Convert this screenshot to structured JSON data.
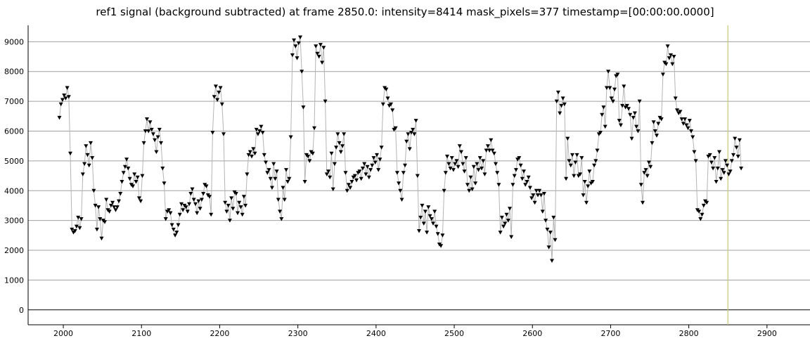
{
  "title": "ref1 signal (background subtracted) at frame 2850.0: intensity=8414 mask_pixels=377 timestamp=[00:00:00.0000]",
  "chart_data": {
    "type": "scatter",
    "title": "ref1 signal (background subtracted) at frame 2850.0: intensity=8414 mask_pixels=377 timestamp=[00:00:00.0000]",
    "xlabel": "",
    "ylabel": "",
    "xlim": [
      1955,
      2955
    ],
    "ylim": [
      -500,
      9550
    ],
    "x_ticks": [
      2000,
      2100,
      2200,
      2300,
      2400,
      2500,
      2600,
      2700,
      2800,
      2900
    ],
    "y_ticks": [
      0,
      1000,
      2000,
      3000,
      4000,
      5000,
      6000,
      7000,
      8000,
      9000
    ],
    "grid": "horizontal",
    "marker": "down-triangle",
    "line_color": "#b4b4b4",
    "marker_color": "#000000",
    "cursor": {
      "x": 2850,
      "color": "#c8c878"
    },
    "series": [
      {
        "x_start": 1995,
        "x_step": 2,
        "values": [
          6450,
          6900,
          7050,
          7200,
          7100,
          7450,
          7150,
          5250,
          2700,
          2600,
          2650,
          2800,
          3100,
          2750,
          3050,
          4550,
          4900,
          5500,
          5200,
          4850,
          5600,
          5100,
          4000,
          3500,
          2700,
          3450,
          3050,
          2400,
          3000,
          2950,
          3700,
          3350,
          3300,
          3500,
          3600,
          3450,
          3350,
          3450,
          3650,
          3900,
          4300,
          4600,
          4800,
          5050,
          4750,
          4400,
          4200,
          4150,
          4550,
          4300,
          4450,
          3750,
          3650,
          4500,
          5600,
          6000,
          6400,
          6000,
          6300,
          6050,
          5900,
          5700,
          5300,
          5800,
          6050,
          5600,
          4750,
          4250,
          3050,
          3300,
          3350,
          3250,
          2850,
          2700,
          2500,
          2600,
          2850,
          3200,
          3550,
          3350,
          3500,
          3450,
          3300,
          3550,
          3900,
          4050,
          3700,
          3550,
          3250,
          3650,
          3400,
          3700,
          3900,
          4200,
          4150,
          3850,
          3800,
          3200,
          5950,
          7150,
          7500,
          7050,
          7300,
          7450,
          6900,
          5900,
          3600,
          3300,
          3500,
          3000,
          3750,
          3400,
          3950,
          3900,
          3250,
          3600,
          3450,
          3200,
          3800,
          3500,
          4550,
          5200,
          5300,
          5150,
          5400,
          5250,
          6050,
          5900,
          6000,
          6150,
          5950,
          5200,
          4950,
          4600,
          4700,
          4400,
          4100,
          4900,
          4400,
          4650,
          3700,
          3300,
          3050,
          4100,
          3700,
          4700,
          4300,
          4400,
          5800,
          8550,
          9050,
          8850,
          8450,
          8950,
          9150,
          8000,
          6800,
          4300,
          5200,
          5150,
          5000,
          5300,
          5250,
          6100,
          8850,
          8600,
          8500,
          8900,
          8300,
          8800,
          7000,
          4550,
          4650,
          4450,
          5250,
          4050,
          4900,
          5450,
          5900,
          5600,
          5300,
          5500,
          5900,
          4600,
          4000,
          4200,
          4100,
          4300,
          4450,
          4500,
          4350,
          4600,
          4650,
          4400,
          4750,
          4900,
          4550,
          4800,
          4450,
          4700,
          4850,
          5100,
          4950,
          5200,
          4700,
          5050,
          5450,
          6900,
          7450,
          7400,
          7100,
          6850,
          6900,
          6700,
          6050,
          6100,
          4600,
          4250,
          4000,
          3700,
          4600,
          4850,
          5650,
          5900,
          5400,
          5950,
          6050,
          5900,
          6350,
          4500,
          2650,
          3100,
          3500,
          2900,
          3300,
          2600,
          3450,
          3150,
          3050,
          2900,
          3300,
          2800,
          2550,
          2200,
          2150,
          2500,
          4000,
          4600,
          5150,
          4900,
          4750,
          5100,
          4700,
          4900,
          5000,
          4800,
          5500,
          5300,
          4900,
          4650,
          5100,
          4200,
          4000,
          4450,
          4050,
          4800,
          4250,
          4900,
          4700,
          5100,
          4750,
          5000,
          4550,
          5350,
          5500,
          5350,
          5700,
          5350,
          5250,
          4900,
          4600,
          4200,
          2600,
          3100,
          2800,
          2900,
          3200,
          3000,
          3400,
          2450,
          4200,
          4500,
          4700,
          5050,
          5100,
          4850,
          4400,
          4650,
          4200,
          4300,
          4450,
          4100,
          3750,
          3850,
          3600,
          4000,
          3850,
          4000,
          3850,
          3300,
          3900,
          3000,
          2700,
          2100,
          2600,
          1650,
          3100,
          2350,
          7000,
          7300,
          6600,
          6850,
          7100,
          6900,
          4400,
          5750,
          5000,
          4850,
          5200,
          4500,
          4950,
          5200,
          4500,
          4550,
          5100,
          3850,
          4300,
          3600,
          4150,
          4650,
          4250,
          4300,
          4850,
          5000,
          5350,
          5900,
          5950,
          6550,
          6800,
          6150,
          7450,
          8000,
          7450,
          7100,
          7000,
          7400,
          7850,
          7900,
          6350,
          6200,
          6850,
          7500,
          6800,
          6850,
          6750,
          6550,
          5750,
          6450,
          6600,
          6150,
          6000,
          7000,
          4200,
          3600,
          4600,
          4700,
          4500,
          4950,
          4800,
          5600,
          6300,
          6000,
          5850,
          6250,
          6450,
          6400,
          7900,
          8300,
          8250,
          8850,
          8450,
          8550,
          8250,
          8500,
          7100,
          6700,
          6600,
          6650,
          6400,
          6250,
          6400,
          6200,
          6100,
          6350,
          6000,
          5800,
          5300,
          5000,
          3350,
          3300,
          3050,
          3200,
          3500,
          3650,
          3600,
          5150,
          5200,
          4950,
          4750,
          5100,
          4300,
          4750,
          5300,
          4400,
          4700,
          4600,
          5000,
          4850,
          4550,
          4650,
          5000,
          5200,
          5750,
          5450,
          5150,
          5700,
          4750
        ]
      }
    ]
  }
}
